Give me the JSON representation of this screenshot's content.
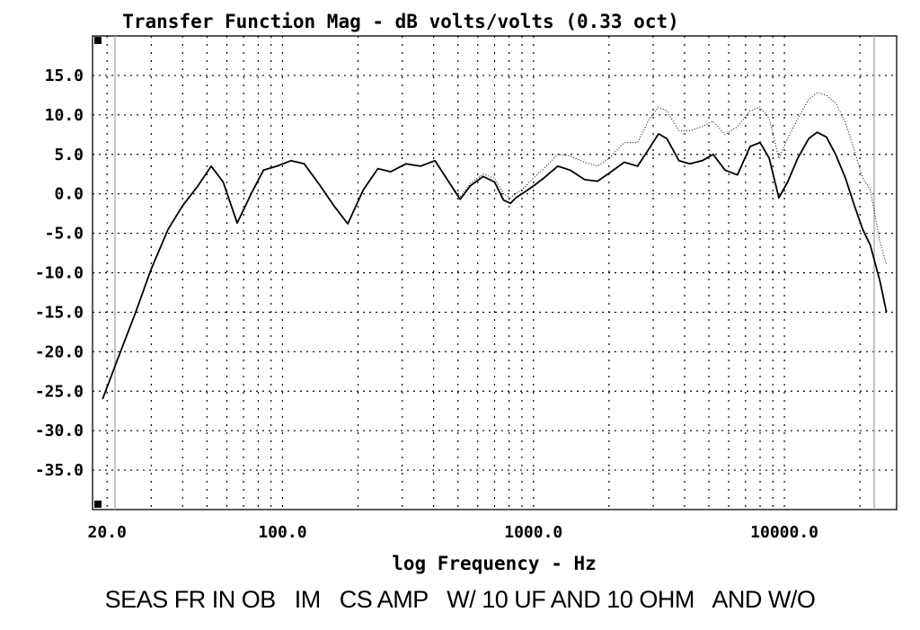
{
  "caption": "SEAS FR IN OB   IM   CS AMP   W/ 10 UF AND 10 OHM   AND W/O",
  "chart_data": {
    "type": "line",
    "title": "Transfer Function Mag - dB volts/volts (0.33 oct)",
    "xlabel": "log Frequency - Hz",
    "ylabel": "",
    "x_scale": "log",
    "xlim": [
      17.5,
      28000
    ],
    "ylim": [
      -40,
      20
    ],
    "grid": true,
    "legend": "none",
    "x_tick_labels": [
      {
        "value": 20,
        "label": "20.0"
      },
      {
        "value": 100,
        "label": "100.0"
      },
      {
        "value": 1000,
        "label": "1000.0"
      },
      {
        "value": 10000,
        "label": "10000.0"
      }
    ],
    "y_tick_labels": [
      {
        "value": 15,
        "label": "15.0"
      },
      {
        "value": 10,
        "label": "10.0"
      },
      {
        "value": 5,
        "label": "5.0"
      },
      {
        "value": 0,
        "label": "0.0"
      },
      {
        "value": -5,
        "label": "-5.0"
      },
      {
        "value": -10,
        "label": "-10.0"
      },
      {
        "value": -15,
        "label": "-15.0"
      },
      {
        "value": -20,
        "label": "-20.0"
      },
      {
        "value": -25,
        "label": "-25.0"
      },
      {
        "value": -30,
        "label": "-30.0"
      },
      {
        "value": -35,
        "label": "-35.0"
      }
    ],
    "series": [
      {
        "style": "solid",
        "color": "#000000",
        "x": [
          19.2,
          22,
          26,
          30,
          35,
          40,
          46,
          52,
          58,
          66,
          75,
          84,
          95,
          108,
          122,
          140,
          160,
          182,
          210,
          240,
          270,
          310,
          355,
          405,
          460,
          510,
          560,
          630,
          700,
          760,
          810,
          850,
          920,
          1000,
          1100,
          1250,
          1400,
          1600,
          1800,
          2000,
          2300,
          2600,
          2900,
          3150,
          3400,
          3800,
          4200,
          4700,
          5200,
          5800,
          6500,
          7300,
          8000,
          8700,
          9500,
          10300,
          11300,
          12500,
          13500,
          14700,
          16000,
          17500,
          19000,
          20500,
          22000,
          24000,
          25500
        ],
        "y": [
          -26,
          -21,
          -15,
          -9.5,
          -4.5,
          -1.5,
          1,
          3.5,
          1.5,
          -3.7,
          0,
          3,
          3.5,
          4.2,
          3.8,
          1.2,
          -1.5,
          -3.8,
          0.5,
          3.2,
          2.8,
          3.8,
          3.5,
          4.2,
          1.5,
          -0.7,
          1,
          2.2,
          1.5,
          -0.8,
          -1.2,
          -0.5,
          0.2,
          1,
          2,
          3.5,
          3,
          1.8,
          1.6,
          2.6,
          4,
          3.5,
          5.8,
          7.6,
          7,
          4.2,
          3.8,
          4.2,
          5,
          3,
          2.4,
          6,
          6.5,
          4.5,
          -0.5,
          1.5,
          4.5,
          7,
          7.8,
          7.2,
          5,
          2,
          -1.5,
          -4.5,
          -6.5,
          -11,
          -15
        ]
      },
      {
        "style": "dotted",
        "color": "#000000",
        "x": [
          19.2,
          22,
          26,
          30,
          35,
          40,
          46,
          52,
          58,
          66,
          75,
          84,
          95,
          108,
          122,
          140,
          160,
          182,
          210,
          240,
          270,
          310,
          355,
          405,
          460,
          510,
          560,
          630,
          700,
          760,
          810,
          850,
          920,
          1000,
          1100,
          1250,
          1400,
          1600,
          1800,
          2000,
          2300,
          2600,
          2900,
          3150,
          3400,
          3800,
          4200,
          4700,
          5200,
          5800,
          6500,
          7300,
          8000,
          8700,
          9500,
          10300,
          11300,
          12500,
          13500,
          14700,
          16000,
          17500,
          19000,
          20500,
          22000,
          24000,
          25500
        ],
        "y": [
          -26,
          -21,
          -15,
          -9.5,
          -4.5,
          -1.5,
          1,
          3.5,
          1.5,
          -3.7,
          0,
          3,
          3.5,
          4.2,
          3.8,
          1.2,
          -1.5,
          -3.8,
          0.5,
          3.2,
          2.8,
          3.8,
          3.5,
          4.2,
          1.5,
          -0.4,
          1.3,
          2.5,
          2,
          0,
          -0.5,
          0,
          0.8,
          2,
          3.2,
          5,
          4.8,
          4,
          3.5,
          4.5,
          6.5,
          6.5,
          9.5,
          11,
          10.5,
          8,
          8,
          8.5,
          9.2,
          7.5,
          8.5,
          10.5,
          11,
          9.5,
          4.5,
          7,
          9.5,
          12,
          12.8,
          12.5,
          11.5,
          9,
          5.5,
          2,
          0.5,
          -6,
          -9
        ]
      }
    ]
  }
}
